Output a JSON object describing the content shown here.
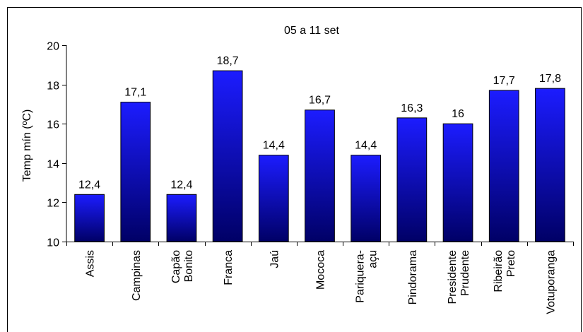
{
  "chart_data": {
    "type": "bar",
    "title": "05 a 11 set",
    "ylabel": "Temp mín (ºC)",
    "xlabel": "",
    "ylim": [
      10,
      20
    ],
    "yticks": [
      10,
      12,
      14,
      16,
      18,
      20
    ],
    "grid": false,
    "legend": "none",
    "categories": [
      [
        "Assis"
      ],
      [
        "Campinas"
      ],
      [
        "Capão",
        "Bonito"
      ],
      [
        "Franca"
      ],
      [
        "Jaú"
      ],
      [
        "Mococa"
      ],
      [
        "Pariquera-",
        "açu"
      ],
      [
        "Pindorama"
      ],
      [
        "Presidente",
        "Prudente"
      ],
      [
        "Ribeirão",
        "Preto"
      ],
      [
        "Votuporanga"
      ]
    ],
    "values": [
      12.4,
      17.1,
      12.4,
      18.7,
      14.4,
      16.7,
      14.4,
      16.3,
      16,
      17.7,
      17.8
    ],
    "data_labels": [
      "12,4",
      "17,1",
      "12,4",
      "18,7",
      "14,4",
      "16,7",
      "14,4",
      "16,3",
      "16",
      "17,7",
      "17,8"
    ],
    "colors": {
      "bar_top": "#1c1cff",
      "bar_bottom": "#000066",
      "bar_stroke": "#000000",
      "frame": "#000000"
    }
  }
}
